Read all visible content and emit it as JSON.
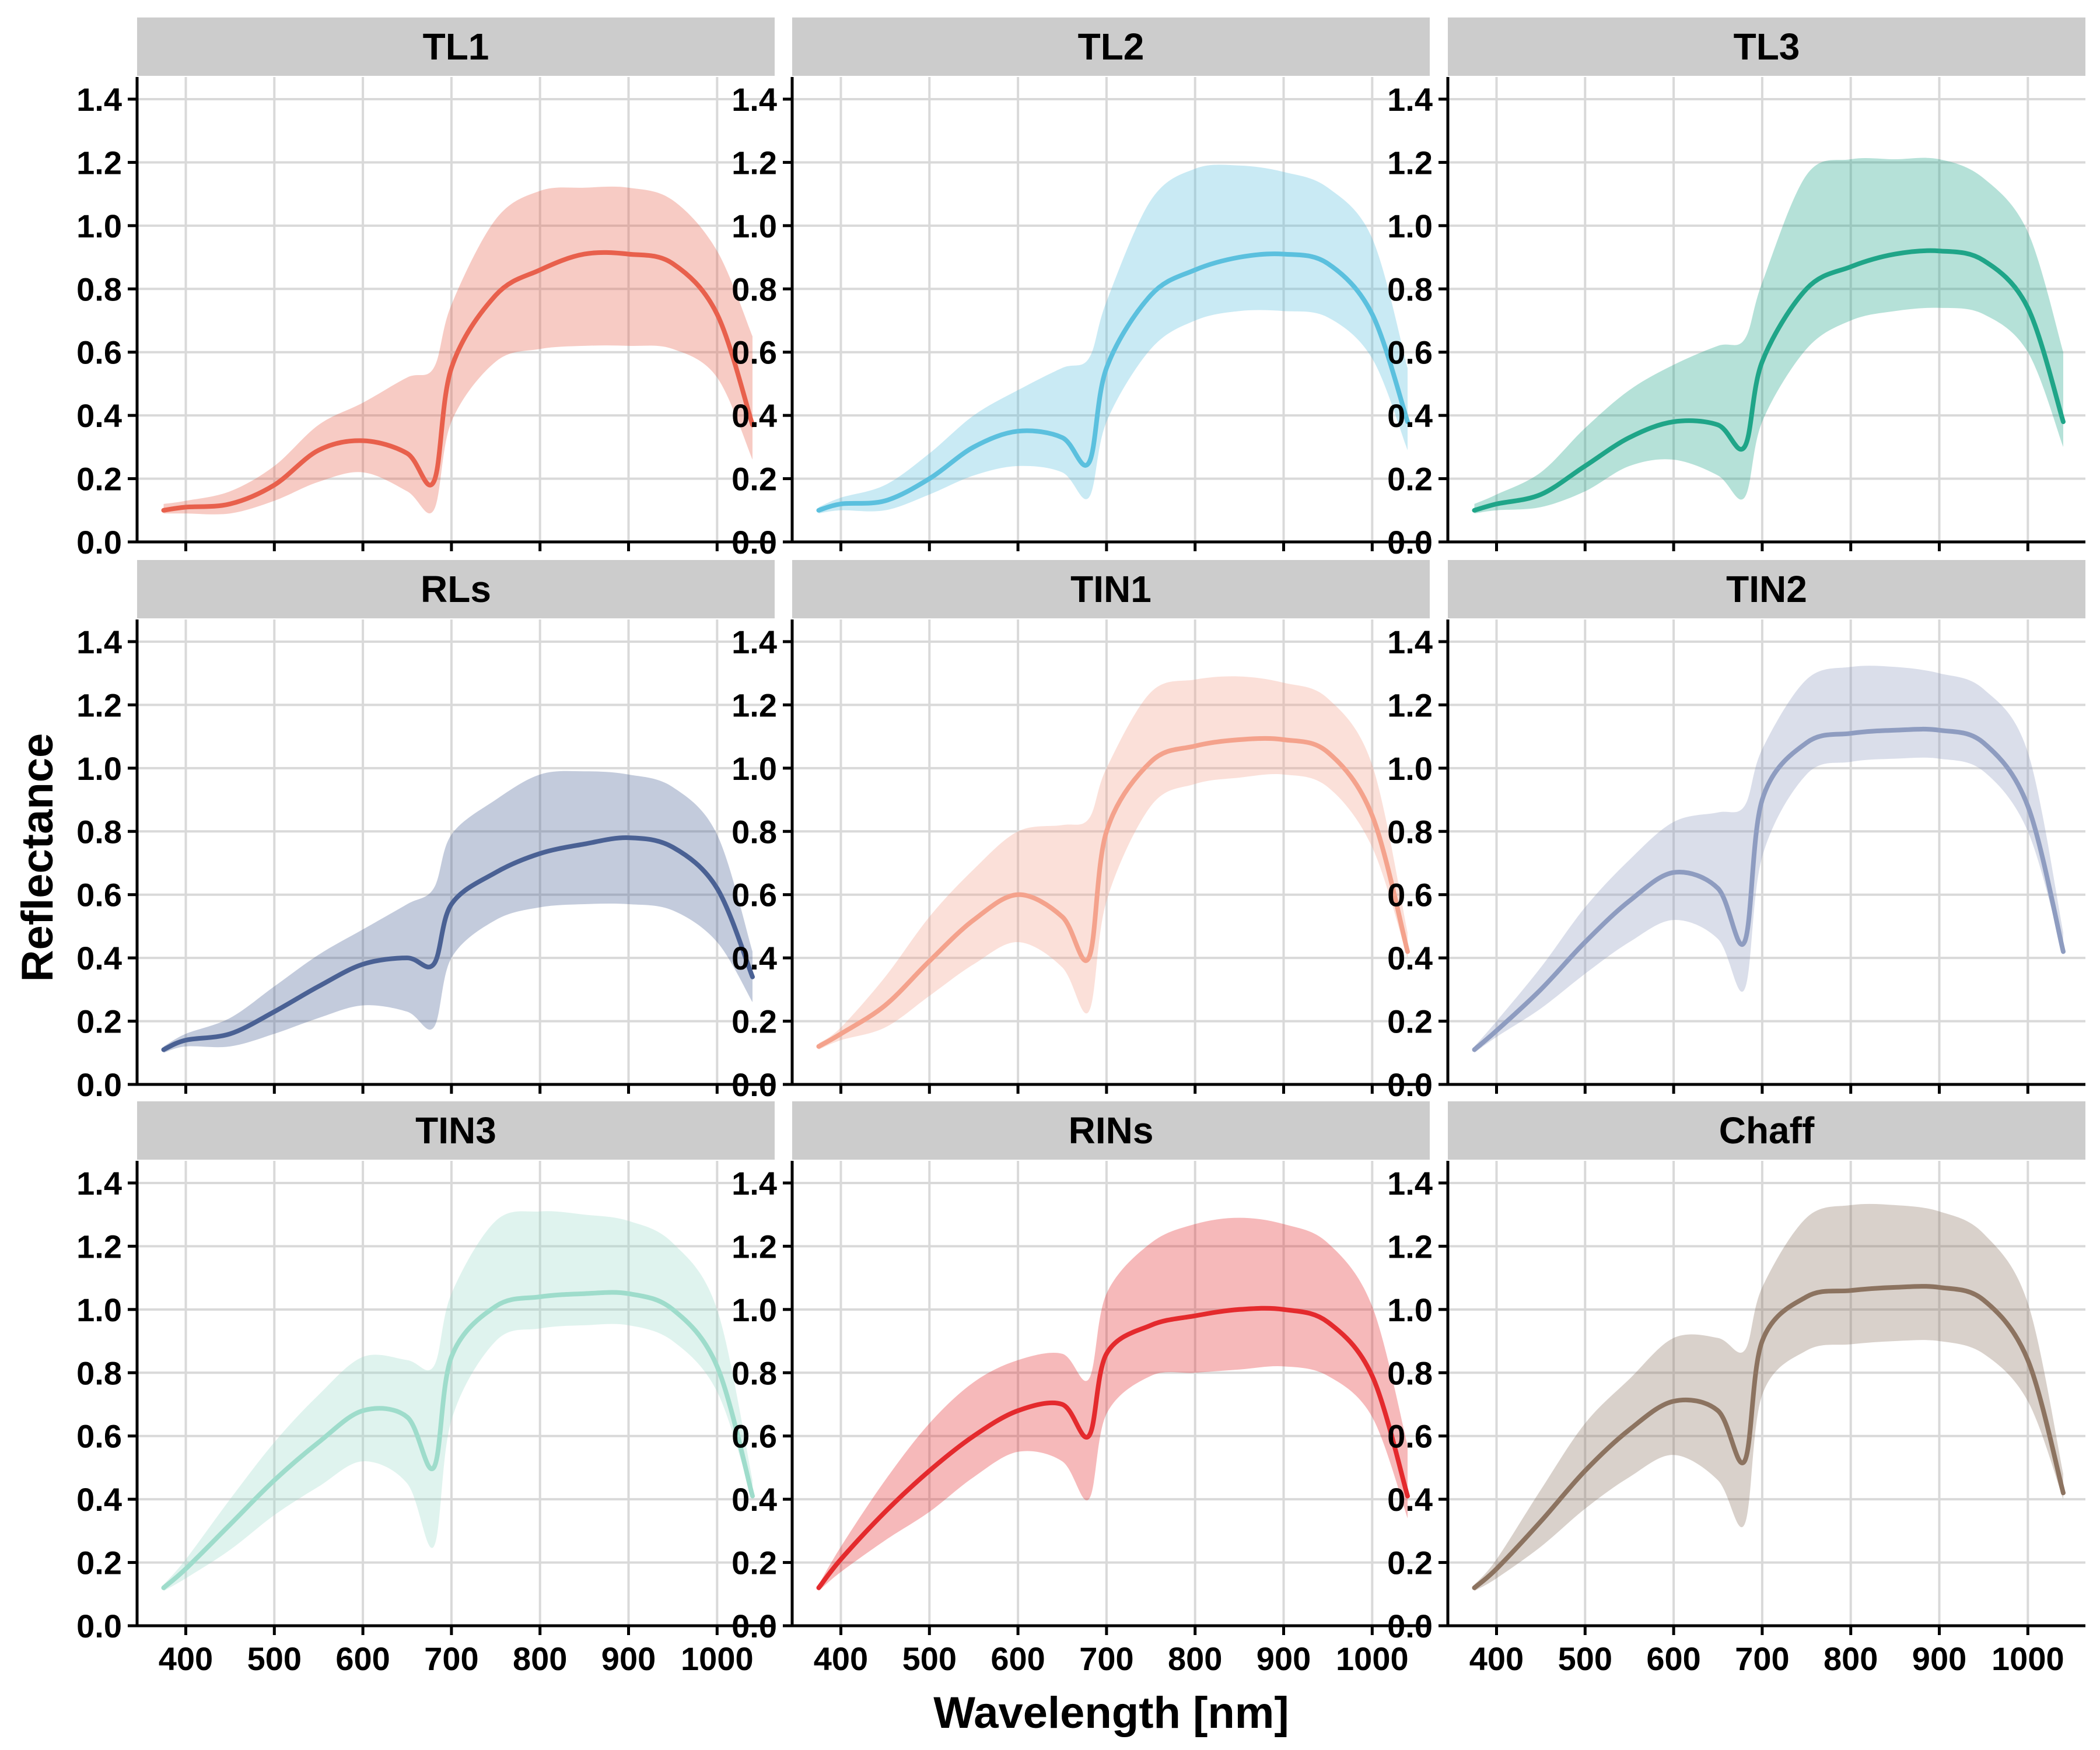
{
  "axes": {
    "xlabel": "Wavelength [nm]",
    "ylabel": "Reflectance",
    "xlim": [
      345,
      1065
    ],
    "ylim": [
      0,
      1.47
    ],
    "x_ticks": [
      400,
      500,
      600,
      700,
      800,
      900,
      1000
    ],
    "x_tick_labels": [
      "400",
      "500",
      "600",
      "700",
      "800",
      "900",
      "1000"
    ],
    "y_ticks": [
      0,
      0.2,
      0.4,
      0.6,
      0.8,
      1.0,
      1.2,
      1.4
    ],
    "y_tick_labels": [
      "0.0",
      "0.2",
      "0.4",
      "0.6",
      "0.8",
      "1.0",
      "1.2",
      "1.4"
    ],
    "grid": true
  },
  "chart_data": [
    {
      "type": "area",
      "title": "TL1",
      "color": "#E8604C",
      "x": [
        375,
        400,
        450,
        500,
        550,
        600,
        650,
        680,
        700,
        750,
        800,
        850,
        900,
        950,
        1000,
        1040
      ],
      "mean": [
        0.1,
        0.11,
        0.12,
        0.18,
        0.29,
        0.32,
        0.28,
        0.19,
        0.55,
        0.78,
        0.86,
        0.91,
        0.91,
        0.88,
        0.72,
        0.37
      ],
      "lower": [
        0.09,
        0.09,
        0.09,
        0.13,
        0.19,
        0.22,
        0.16,
        0.1,
        0.38,
        0.57,
        0.61,
        0.62,
        0.62,
        0.61,
        0.52,
        0.26
      ],
      "upper": [
        0.12,
        0.13,
        0.16,
        0.24,
        0.37,
        0.44,
        0.52,
        0.55,
        0.75,
        1.02,
        1.11,
        1.12,
        1.12,
        1.08,
        0.92,
        0.65
      ]
    },
    {
      "type": "area",
      "title": "TL2",
      "color": "#5BC0DE",
      "x": [
        375,
        400,
        450,
        500,
        550,
        600,
        650,
        680,
        700,
        750,
        800,
        850,
        900,
        950,
        1000,
        1040
      ],
      "mean": [
        0.1,
        0.12,
        0.13,
        0.2,
        0.3,
        0.35,
        0.33,
        0.25,
        0.55,
        0.78,
        0.86,
        0.9,
        0.91,
        0.88,
        0.72,
        0.38
      ],
      "lower": [
        0.09,
        0.1,
        0.1,
        0.15,
        0.21,
        0.24,
        0.22,
        0.14,
        0.38,
        0.61,
        0.7,
        0.73,
        0.73,
        0.71,
        0.58,
        0.29
      ],
      "upper": [
        0.11,
        0.14,
        0.18,
        0.28,
        0.4,
        0.48,
        0.55,
        0.58,
        0.76,
        1.08,
        1.18,
        1.19,
        1.17,
        1.12,
        0.96,
        0.55
      ]
    },
    {
      "type": "area",
      "title": "TL3",
      "color": "#1FA588",
      "x": [
        375,
        400,
        450,
        500,
        550,
        600,
        650,
        680,
        700,
        750,
        800,
        850,
        900,
        950,
        1000,
        1040
      ],
      "mean": [
        0.1,
        0.12,
        0.15,
        0.24,
        0.33,
        0.38,
        0.37,
        0.3,
        0.57,
        0.8,
        0.87,
        0.91,
        0.92,
        0.89,
        0.74,
        0.38
      ],
      "lower": [
        0.09,
        0.1,
        0.11,
        0.16,
        0.24,
        0.26,
        0.21,
        0.14,
        0.38,
        0.61,
        0.7,
        0.73,
        0.74,
        0.72,
        0.6,
        0.3
      ],
      "upper": [
        0.12,
        0.15,
        0.22,
        0.36,
        0.48,
        0.56,
        0.62,
        0.64,
        0.82,
        1.16,
        1.21,
        1.21,
        1.21,
        1.15,
        0.98,
        0.6
      ]
    },
    {
      "type": "area",
      "title": "RLs",
      "color": "#4A6194",
      "x": [
        375,
        400,
        450,
        500,
        550,
        600,
        650,
        680,
        700,
        750,
        800,
        850,
        900,
        950,
        1000,
        1040
      ],
      "mean": [
        0.11,
        0.14,
        0.16,
        0.23,
        0.31,
        0.38,
        0.4,
        0.38,
        0.57,
        0.67,
        0.73,
        0.76,
        0.78,
        0.75,
        0.62,
        0.34
      ],
      "lower": [
        0.1,
        0.12,
        0.12,
        0.16,
        0.21,
        0.25,
        0.23,
        0.18,
        0.4,
        0.52,
        0.56,
        0.57,
        0.57,
        0.55,
        0.45,
        0.26
      ],
      "upper": [
        0.12,
        0.16,
        0.21,
        0.31,
        0.41,
        0.49,
        0.57,
        0.62,
        0.79,
        0.9,
        0.98,
        0.99,
        0.98,
        0.94,
        0.79,
        0.42
      ]
    },
    {
      "type": "area",
      "title": "TIN1",
      "color": "#F4A28C",
      "x": [
        375,
        400,
        450,
        500,
        550,
        600,
        650,
        680,
        700,
        750,
        800,
        850,
        900,
        950,
        1000,
        1040
      ],
      "mean": [
        0.12,
        0.16,
        0.25,
        0.39,
        0.52,
        0.6,
        0.53,
        0.4,
        0.8,
        1.02,
        1.07,
        1.09,
        1.09,
        1.05,
        0.85,
        0.42
      ],
      "lower": [
        0.11,
        0.14,
        0.18,
        0.28,
        0.38,
        0.45,
        0.37,
        0.23,
        0.58,
        0.88,
        0.95,
        0.97,
        0.98,
        0.94,
        0.75,
        0.4
      ],
      "upper": [
        0.13,
        0.18,
        0.34,
        0.53,
        0.68,
        0.8,
        0.82,
        0.84,
        1.0,
        1.24,
        1.28,
        1.29,
        1.27,
        1.22,
        1.01,
        0.48
      ]
    },
    {
      "type": "area",
      "title": "TIN2",
      "color": "#8E9CC0",
      "x": [
        375,
        400,
        450,
        500,
        550,
        600,
        650,
        680,
        700,
        750,
        800,
        850,
        900,
        950,
        1000,
        1040
      ],
      "mean": [
        0.11,
        0.17,
        0.3,
        0.45,
        0.58,
        0.67,
        0.62,
        0.45,
        0.9,
        1.08,
        1.11,
        1.12,
        1.12,
        1.08,
        0.88,
        0.42
      ],
      "lower": [
        0.1,
        0.15,
        0.24,
        0.35,
        0.45,
        0.52,
        0.46,
        0.3,
        0.72,
        0.98,
        1.02,
        1.03,
        1.03,
        0.99,
        0.8,
        0.41
      ],
      "upper": [
        0.12,
        0.2,
        0.37,
        0.56,
        0.71,
        0.83,
        0.86,
        0.88,
        1.06,
        1.28,
        1.32,
        1.32,
        1.3,
        1.25,
        1.05,
        0.48
      ]
    },
    {
      "type": "area",
      "title": "TIN3",
      "color": "#9EDCCB",
      "x": [
        375,
        400,
        450,
        500,
        550,
        600,
        650,
        680,
        700,
        750,
        800,
        850,
        900,
        950,
        1000,
        1040
      ],
      "mean": [
        0.12,
        0.18,
        0.32,
        0.46,
        0.58,
        0.68,
        0.66,
        0.5,
        0.85,
        1.01,
        1.04,
        1.05,
        1.05,
        1.0,
        0.82,
        0.41
      ],
      "lower": [
        0.11,
        0.15,
        0.24,
        0.35,
        0.44,
        0.52,
        0.45,
        0.25,
        0.65,
        0.9,
        0.94,
        0.95,
        0.95,
        0.9,
        0.74,
        0.4
      ],
      "upper": [
        0.13,
        0.21,
        0.4,
        0.58,
        0.73,
        0.85,
        0.84,
        0.82,
        1.05,
        1.28,
        1.31,
        1.3,
        1.28,
        1.21,
        1.0,
        0.46
      ]
    },
    {
      "type": "area",
      "title": "RINs",
      "color": "#E42A2D",
      "x": [
        375,
        400,
        450,
        500,
        550,
        600,
        650,
        680,
        700,
        750,
        800,
        850,
        900,
        950,
        1000,
        1040
      ],
      "mean": [
        0.12,
        0.21,
        0.36,
        0.49,
        0.6,
        0.68,
        0.7,
        0.6,
        0.86,
        0.95,
        0.98,
        1.0,
        1.0,
        0.96,
        0.79,
        0.41
      ],
      "lower": [
        0.11,
        0.17,
        0.27,
        0.36,
        0.47,
        0.55,
        0.52,
        0.4,
        0.67,
        0.79,
        0.8,
        0.81,
        0.82,
        0.79,
        0.66,
        0.34
      ],
      "upper": [
        0.13,
        0.25,
        0.46,
        0.64,
        0.77,
        0.84,
        0.86,
        0.78,
        1.05,
        1.21,
        1.27,
        1.29,
        1.27,
        1.21,
        1.01,
        0.57
      ]
    },
    {
      "type": "area",
      "title": "Chaff",
      "color": "#8C7360",
      "x": [
        375,
        400,
        450,
        500,
        550,
        600,
        650,
        680,
        700,
        750,
        800,
        850,
        900,
        950,
        1000,
        1040
      ],
      "mean": [
        0.12,
        0.18,
        0.33,
        0.49,
        0.62,
        0.71,
        0.68,
        0.52,
        0.9,
        1.04,
        1.06,
        1.07,
        1.07,
        1.03,
        0.84,
        0.42
      ],
      "lower": [
        0.11,
        0.15,
        0.25,
        0.37,
        0.47,
        0.54,
        0.46,
        0.32,
        0.73,
        0.87,
        0.89,
        0.9,
        0.9,
        0.86,
        0.71,
        0.4
      ],
      "upper": [
        0.13,
        0.21,
        0.43,
        0.64,
        0.78,
        0.91,
        0.91,
        0.87,
        1.07,
        1.29,
        1.33,
        1.33,
        1.31,
        1.24,
        1.02,
        0.48
      ]
    }
  ]
}
